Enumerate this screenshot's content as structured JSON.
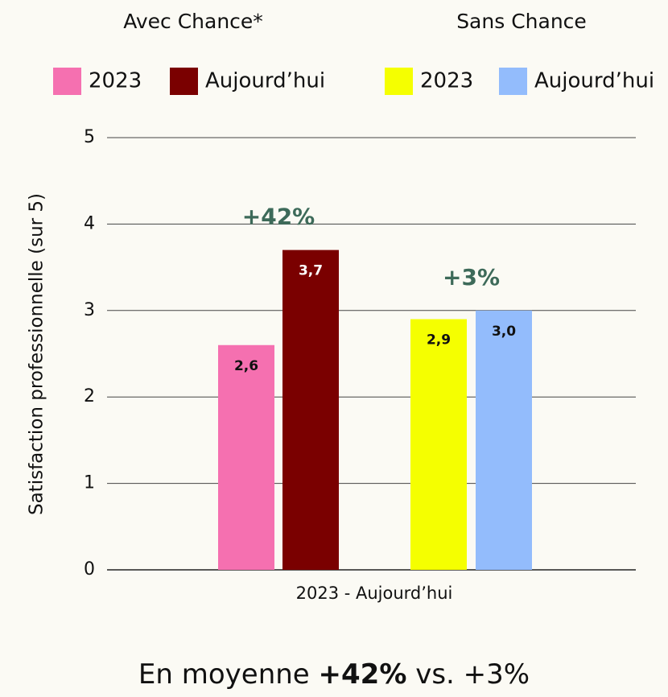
{
  "chart_data": {
    "type": "bar",
    "legend_groups": [
      "Avec Chance*",
      "Sans Chance"
    ],
    "categories": [
      "2023 - Aujourd’hui"
    ],
    "series": [
      {
        "name": "2023",
        "color": "#f570b0",
        "values": [
          2.6
        ],
        "value_labels": [
          "2,6"
        ]
      },
      {
        "name": "Aujourd’hui",
        "color": "#7a0000",
        "values": [
          3.7
        ],
        "value_labels": [
          "3,7"
        ]
      },
      {
        "name": "2023",
        "color": "#f5ff00",
        "values": [
          2.9
        ],
        "value_labels": [
          "2,9"
        ]
      },
      {
        "name": "Aujourd’hui",
        "color": "#93bcfc",
        "values": [
          3.0
        ],
        "value_labels": [
          "3,0"
        ]
      }
    ],
    "annotations": [
      "+42%",
      "+3%"
    ],
    "ylabel": "Satisfaction professionnelle (sur 5)",
    "ylim": [
      0,
      5
    ],
    "yticks": [
      0,
      1,
      2,
      3,
      4,
      5
    ],
    "grid": true,
    "footer": [
      "En moyenne",
      "+42%",
      "vs. +3%"
    ]
  }
}
